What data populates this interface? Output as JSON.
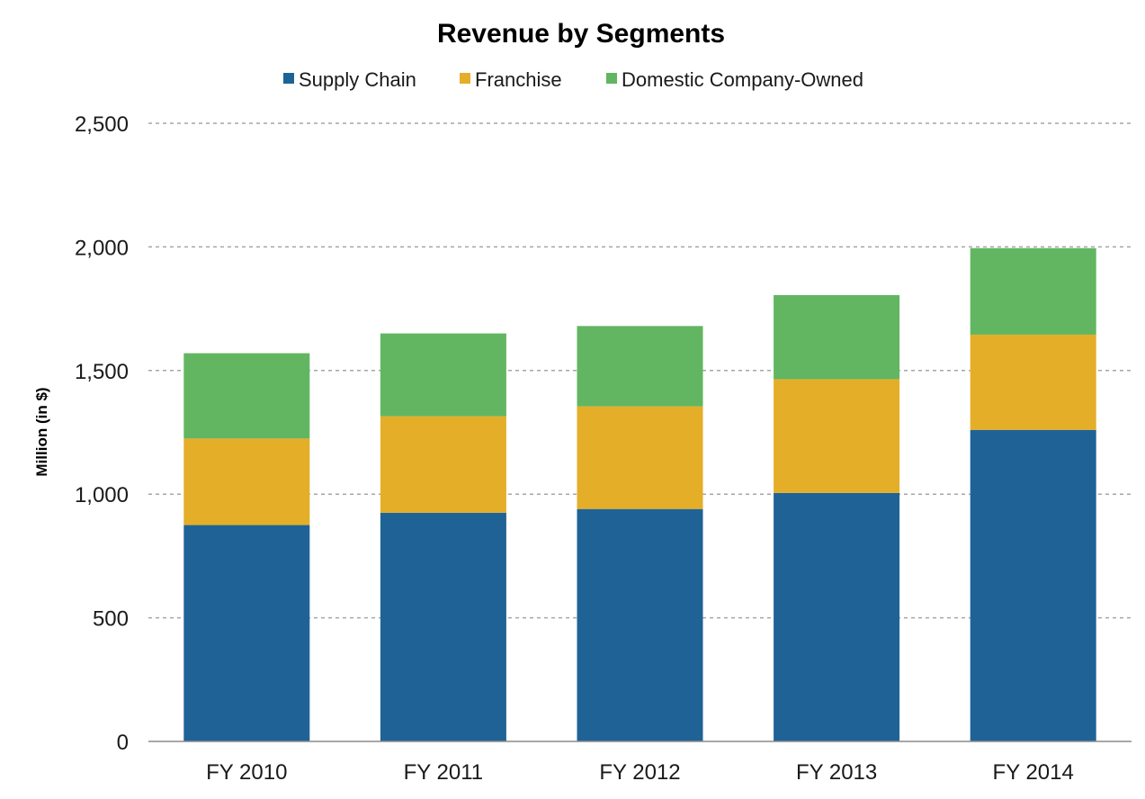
{
  "chart_data": {
    "type": "bar",
    "stacked": true,
    "title": "Revenue by Segments",
    "xlabel": "",
    "ylabel": "Million (in $)",
    "categories": [
      "FY 2010",
      "FY 2011",
      "FY 2012",
      "FY 2013",
      "FY 2014"
    ],
    "series": [
      {
        "name": "Supply Chain",
        "color": "#1f6396",
        "values": [
          875,
          925,
          940,
          1005,
          1260
        ]
      },
      {
        "name": "Franchise",
        "color": "#e5ae28",
        "values": [
          350,
          390,
          415,
          460,
          385
        ]
      },
      {
        "name": "Domestic Company-Owned",
        "color": "#62b661",
        "values": [
          345,
          335,
          325,
          340,
          350
        ]
      }
    ],
    "ylim": [
      0,
      2500
    ],
    "yticks": [
      0,
      500,
      1000,
      1500,
      2000,
      2500
    ],
    "ytick_labels": [
      "0",
      "500",
      "1,000",
      "1,500",
      "2,000",
      "2,500"
    ],
    "grid": true,
    "grid_style": "dashed",
    "legend_position": "top"
  }
}
